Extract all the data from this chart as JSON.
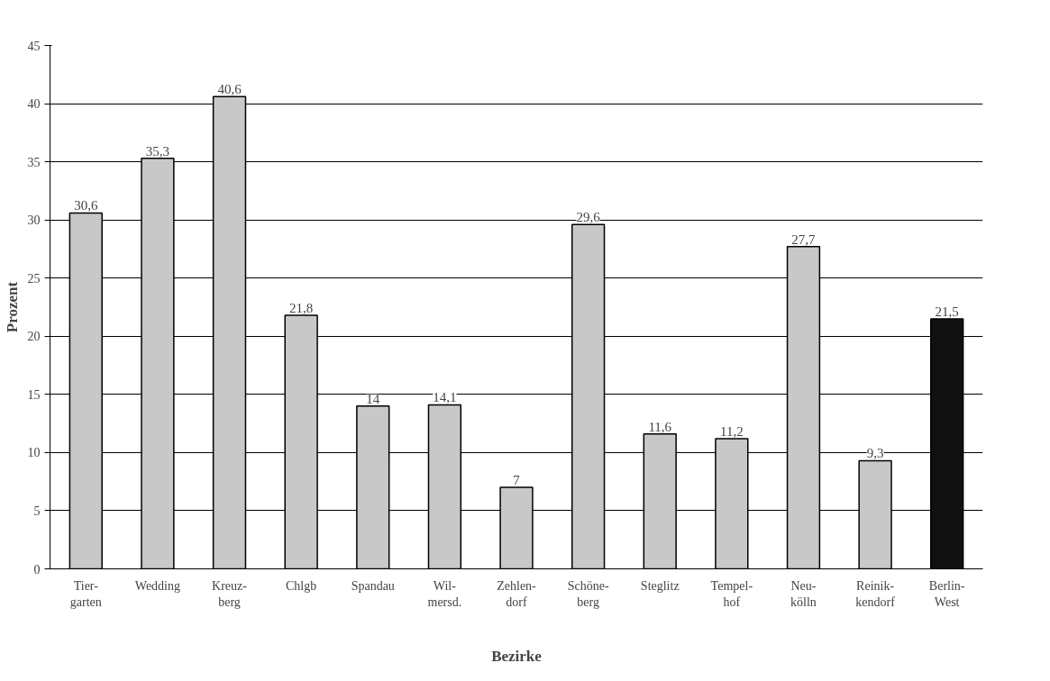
{
  "chart_data": {
    "type": "bar",
    "xlabel": "Bezirke",
    "ylabel": "Prozent",
    "categories": [
      "Tier-\ngarten",
      "Wedding",
      "Kreuz-\nberg",
      "Chlgb",
      "Spandau",
      "Wil-\nmersd.",
      "Zehlen-\ndorf",
      "Schöne-\nberg",
      "Steglitz",
      "Tempel-\nhof",
      "Neu-\nkölln",
      "Reinik-\nkendorf",
      "Berlin-\nWest"
    ],
    "values": [
      30.6,
      35.3,
      40.6,
      21.8,
      14,
      14.1,
      7,
      29.6,
      11.6,
      11.2,
      27.7,
      9.3,
      21.5
    ],
    "colors": [
      "#c8c8c8",
      "#c8c8c8",
      "#c8c8c8",
      "#c8c8c8",
      "#c8c8c8",
      "#c8c8c8",
      "#c8c8c8",
      "#c8c8c8",
      "#c8c8c8",
      "#c8c8c8",
      "#c8c8c8",
      "#c8c8c8",
      "#111111"
    ],
    "value_labels": [
      "30,6",
      "35,3",
      "40,6",
      "21,8",
      "14",
      "14,1",
      "7",
      "29,6",
      "11,6",
      "11,2",
      "27,7",
      "9,3",
      "21,5"
    ],
    "ylim": [
      0,
      45
    ],
    "yticks": [
      0,
      5,
      10,
      15,
      20,
      25,
      30,
      35,
      40,
      45
    ],
    "grid": "y"
  }
}
